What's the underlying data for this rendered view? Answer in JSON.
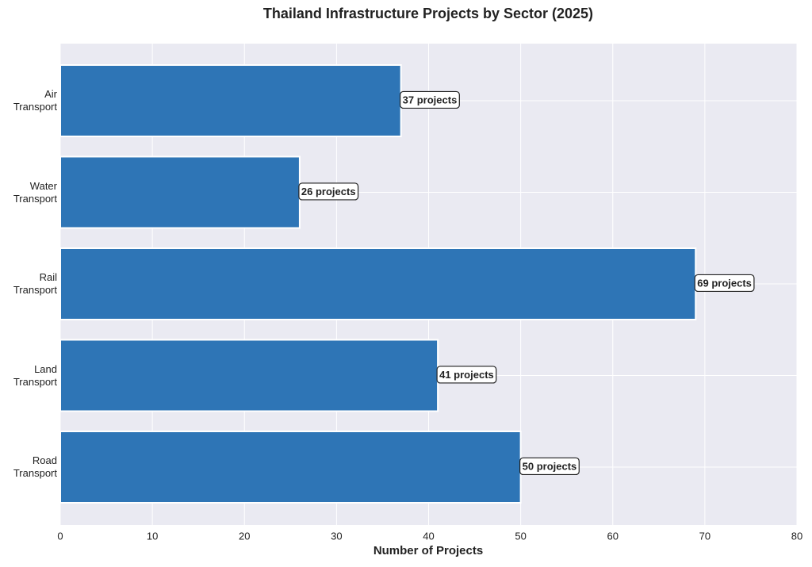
{
  "chart_data": {
    "type": "barh",
    "title": "Thailand Infrastructure Projects by Sector (2025)",
    "x_label": "Number of Projects",
    "categories": [
      "Road Transport",
      "Land Transport",
      "Rail Transport",
      "Water Transport",
      "Air Transport"
    ],
    "values": [
      50,
      41,
      69,
      26,
      37
    ],
    "value_labels": [
      "50 projects",
      "41 projects",
      "69 projects",
      "26 projects",
      "37 projects"
    ],
    "color": "#2e75b6",
    "xlim": [
      0,
      80
    ],
    "xticks": [
      0,
      10,
      20,
      30,
      40,
      50,
      60,
      70,
      80
    ],
    "grid": true
  }
}
